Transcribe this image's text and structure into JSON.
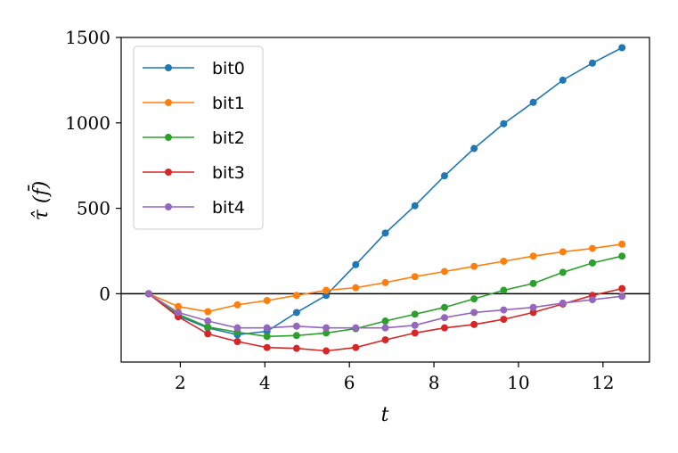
{
  "chart_data": {
    "type": "line",
    "title": "",
    "xlabel": "t",
    "ylabel": "τ̂ (f̄)",
    "xlim": [
      0.6,
      13.1
    ],
    "ylim": [
      -400,
      1500
    ],
    "xticks": [
      2,
      4,
      6,
      8,
      10,
      12
    ],
    "yticks": [
      0,
      500,
      1000,
      1500
    ],
    "grid": false,
    "legend_position": "top-left",
    "zero_line": true,
    "x": [
      1.25,
      1.95,
      2.65,
      3.35,
      4.05,
      4.75,
      5.45,
      6.15,
      6.85,
      7.55,
      8.25,
      8.95,
      9.65,
      10.35,
      11.05,
      11.75,
      12.45
    ],
    "series": [
      {
        "name": "bit0",
        "color": "#1f77b4",
        "values": [
          0,
          -130,
          -200,
          -240,
          -220,
          -110,
          -10,
          170,
          355,
          515,
          690,
          850,
          995,
          1120,
          1250,
          1350,
          1440
        ]
      },
      {
        "name": "bit1",
        "color": "#ff7f0e",
        "values": [
          0,
          -75,
          -105,
          -65,
          -40,
          -10,
          20,
          35,
          65,
          100,
          130,
          160,
          190,
          220,
          245,
          265,
          290
        ]
      },
      {
        "name": "bit2",
        "color": "#2ca02c",
        "values": [
          0,
          -120,
          -195,
          -225,
          -250,
          -245,
          -230,
          -205,
          -160,
          -120,
          -80,
          -30,
          20,
          60,
          125,
          180,
          220
        ]
      },
      {
        "name": "bit3",
        "color": "#d62728",
        "values": [
          0,
          -135,
          -235,
          -280,
          -315,
          -320,
          -335,
          -315,
          -270,
          -230,
          -200,
          -180,
          -150,
          -110,
          -60,
          -10,
          30
        ]
      },
      {
        "name": "bit4",
        "color": "#9467bd",
        "values": [
          0,
          -110,
          -160,
          -200,
          -200,
          -190,
          -200,
          -200,
          -200,
          -185,
          -140,
          -110,
          -95,
          -80,
          -55,
          -35,
          -15
        ]
      }
    ]
  }
}
